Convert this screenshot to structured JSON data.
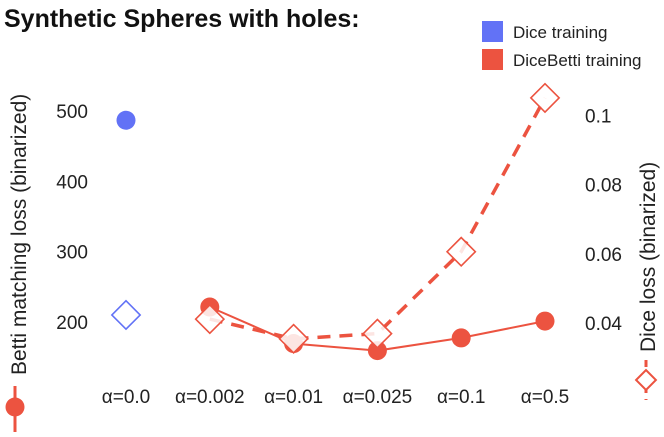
{
  "chart_data": {
    "type": "line",
    "title": "Synthetic Spheres with holes:",
    "categories": [
      "α=0.0",
      "α=0.002",
      "α=0.01",
      "α=0.025",
      "α=0.1",
      "α=0.5"
    ],
    "y_left": {
      "label": "Betti matching loss (binarized)",
      "ticks": [
        200,
        300,
        400,
        500
      ],
      "range": [
        100,
        570
      ]
    },
    "y_right": {
      "label": "Dice loss (binarized)",
      "ticks": [
        0.04,
        0.06,
        0.08,
        0.1
      ],
      "tick_labels": [
        "0.04",
        "0.06",
        "0.08",
        "0.1"
      ],
      "range": [
        0.02,
        0.1155
      ]
    },
    "series": [
      {
        "name": "Dice training",
        "metric": "Betti matching loss",
        "axis": "left",
        "color": "#6272f6",
        "marker": "circle",
        "line": "none",
        "values": [
          487,
          null,
          null,
          null,
          null,
          null
        ]
      },
      {
        "name": "Dice training",
        "metric": "Dice loss",
        "axis": "right",
        "color": "#6272f6",
        "marker": "diamond",
        "line": "none",
        "values": [
          0.0423,
          null,
          null,
          null,
          null,
          null
        ]
      },
      {
        "name": "DiceBetti training",
        "metric": "Betti matching loss",
        "axis": "left",
        "color": "#ec5340",
        "marker": "circle",
        "line": "solid",
        "values": [
          null,
          221,
          169,
          159,
          177,
          201
        ]
      },
      {
        "name": "DiceBetti training",
        "metric": "Dice loss",
        "axis": "right",
        "color": "#ec5340",
        "marker": "diamond",
        "line": "dashed",
        "values": [
          null,
          0.0411,
          0.0354,
          0.0369,
          0.0606,
          0.1051
        ]
      }
    ],
    "legend": [
      {
        "label": "Dice training",
        "color": "#6272f6"
      },
      {
        "label": "DiceBetti training",
        "color": "#ec5340"
      }
    ],
    "legend_position": "top-right"
  }
}
